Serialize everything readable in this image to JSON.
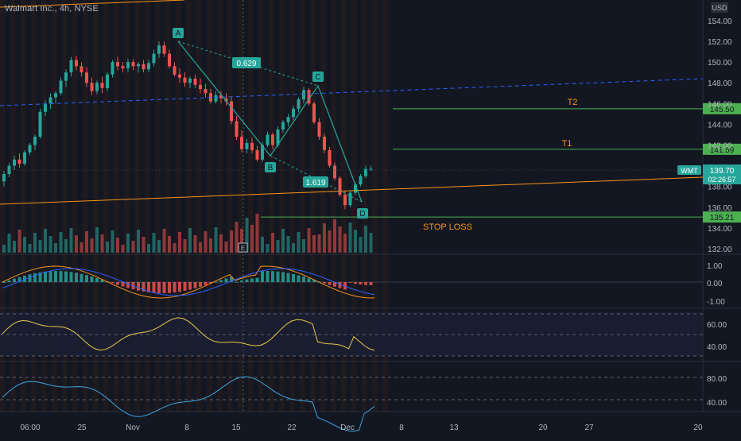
{
  "header": {
    "title": "Walmart Inc., 4h, NYSE",
    "currency": "USD"
  },
  "colors": {
    "bg": "#131722",
    "up": "#26a69a",
    "down": "#ef5350",
    "axis_text": "#b2b5be",
    "grid": "#1e222d",
    "fib": "#26a69a",
    "orange": "#f7931a",
    "yellow": "#e6c84c",
    "blue": "#2962ff",
    "cyan": "#3ea6e0"
  },
  "ticker": {
    "symbol": "WMT",
    "price": "139.70",
    "countdown": "02:26:57"
  },
  "price_axis": {
    "ticks": [
      "154.00",
      "152.00",
      "150.00",
      "148.00",
      "146.00",
      "144.00",
      "142.00",
      "138.00",
      "136.00",
      "134.00",
      "132.00"
    ],
    "levels": [
      {
        "name": "T2",
        "price": 145.5,
        "label": "145.50",
        "text": "T2"
      },
      {
        "name": "T1",
        "price": 141.59,
        "label": "141.59",
        "text": "T1"
      },
      {
        "name": "STOP LOSS",
        "price": 135.21,
        "label": "135.21",
        "text": "STOP LOSS"
      }
    ]
  },
  "macd_axis": {
    "ticks": [
      "1.00",
      "0.00",
      "-1.00"
    ]
  },
  "rsi_axis": {
    "ticks": [
      "60.00",
      "40.00"
    ]
  },
  "stoch_axis": {
    "ticks": [
      "80.00",
      "40.00"
    ]
  },
  "time_axis": {
    "labels": [
      "06:00",
      "25",
      "Nov",
      "8",
      "15",
      "22",
      "Dec",
      "8",
      "13",
      "20",
      "27",
      "20"
    ]
  },
  "pattern": {
    "points": [
      "A",
      "B",
      "C",
      "D"
    ],
    "ratios": [
      "0.629",
      "1.619"
    ],
    "earnings_marker": "E"
  },
  "chart_data": {
    "type": "candlestick",
    "title": "Walmart Inc., 4h, NYSE",
    "ylim": [
      131.5,
      155
    ],
    "ohlc_approx": [
      [
        138.5,
        139.5,
        138.0,
        139.2
      ],
      [
        139.2,
        140.3,
        138.9,
        140.0
      ],
      [
        140.0,
        141.0,
        139.6,
        140.6
      ],
      [
        140.6,
        141.2,
        139.8,
        140.2
      ],
      [
        140.2,
        141.5,
        140.0,
        141.3
      ],
      [
        141.3,
        142.2,
        141.0,
        142.0
      ],
      [
        142.0,
        143.0,
        141.5,
        142.8
      ],
      [
        142.8,
        145.5,
        142.6,
        145.2
      ],
      [
        145.2,
        146.3,
        144.8,
        146.0
      ],
      [
        146.0,
        147.0,
        145.5,
        146.6
      ],
      [
        146.6,
        147.2,
        146.0,
        147.0
      ],
      [
        147.0,
        148.5,
        146.8,
        148.2
      ],
      [
        148.2,
        149.3,
        147.6,
        149.0
      ],
      [
        149.0,
        150.5,
        148.6,
        150.2
      ],
      [
        150.2,
        150.6,
        149.2,
        149.6
      ],
      [
        149.6,
        150.0,
        148.6,
        149.0
      ],
      [
        149.0,
        149.5,
        147.6,
        148.0
      ],
      [
        148.0,
        148.5,
        146.8,
        147.2
      ],
      [
        147.2,
        148.2,
        146.9,
        148.0
      ],
      [
        148.0,
        148.6,
        147.0,
        147.5
      ],
      [
        147.5,
        149.0,
        147.2,
        148.8
      ],
      [
        148.8,
        150.2,
        148.5,
        150.0
      ],
      [
        150.0,
        150.5,
        149.2,
        149.6
      ],
      [
        149.6,
        150.0,
        149.0,
        149.4
      ],
      [
        149.4,
        150.3,
        149.0,
        150.0
      ],
      [
        150.0,
        150.3,
        149.2,
        149.6
      ],
      [
        149.6,
        150.0,
        149.0,
        149.8
      ],
      [
        149.8,
        150.2,
        149.0,
        149.3
      ],
      [
        149.3,
        150.2,
        149.0,
        149.9
      ],
      [
        149.9,
        151.2,
        149.6,
        150.8
      ],
      [
        150.8,
        152.0,
        150.4,
        151.6
      ],
      [
        151.6,
        152.0,
        150.5,
        150.8
      ],
      [
        150.8,
        151.2,
        149.4,
        149.6
      ],
      [
        149.6,
        150.0,
        148.6,
        148.8
      ],
      [
        148.8,
        149.4,
        148.0,
        148.5
      ],
      [
        148.5,
        149.0,
        147.6,
        148.0
      ],
      [
        148.0,
        148.6,
        147.5,
        148.4
      ],
      [
        148.4,
        148.8,
        147.5,
        147.8
      ],
      [
        147.8,
        148.4,
        147.0,
        147.4
      ],
      [
        147.4,
        147.9,
        146.6,
        147.0
      ],
      [
        147.0,
        147.4,
        146.0,
        146.2
      ],
      [
        146.2,
        147.2,
        146.0,
        146.8
      ],
      [
        146.8,
        147.2,
        146.0,
        146.5
      ],
      [
        146.5,
        147.0,
        145.8,
        146.2
      ],
      [
        146.2,
        146.6,
        144.0,
        144.3
      ],
      [
        144.3,
        144.8,
        142.5,
        142.8
      ],
      [
        142.8,
        143.4,
        141.3,
        141.6
      ],
      [
        141.6,
        142.6,
        141.2,
        142.2
      ],
      [
        142.2,
        142.7,
        141.2,
        141.5
      ],
      [
        141.5,
        141.9,
        140.4,
        140.6
      ],
      [
        140.6,
        142.3,
        140.4,
        142.0
      ],
      [
        142.0,
        143.3,
        141.8,
        143.0
      ],
      [
        143.0,
        143.2,
        141.6,
        142.0
      ],
      [
        142.0,
        143.8,
        141.8,
        143.5
      ],
      [
        143.5,
        144.4,
        143.2,
        144.2
      ],
      [
        144.2,
        145.0,
        143.8,
        144.7
      ],
      [
        144.7,
        145.8,
        144.4,
        145.5
      ],
      [
        145.5,
        146.6,
        145.2,
        146.4
      ],
      [
        146.4,
        147.6,
        146.0,
        147.3
      ],
      [
        147.3,
        147.5,
        145.8,
        146.0
      ],
      [
        146.0,
        146.2,
        144.0,
        144.2
      ],
      [
        144.2,
        144.6,
        142.5,
        142.8
      ],
      [
        142.8,
        143.1,
        141.2,
        141.5
      ],
      [
        141.5,
        141.8,
        139.8,
        140.0
      ],
      [
        140.0,
        140.3,
        138.6,
        138.8
      ],
      [
        138.8,
        139.0,
        137.0,
        137.2
      ],
      [
        137.2,
        137.6,
        135.8,
        136.2
      ],
      [
        136.2,
        137.6,
        136.0,
        137.4
      ],
      [
        137.4,
        138.4,
        137.2,
        138.2
      ],
      [
        138.2,
        139.2,
        138.0,
        139.0
      ],
      [
        139.0,
        140.0,
        138.8,
        139.7
      ],
      [
        139.7,
        140.0,
        139.5,
        139.7
      ]
    ],
    "horizontal_levels": [
      145.5,
      141.59,
      135.21
    ],
    "last_price": 139.7
  }
}
